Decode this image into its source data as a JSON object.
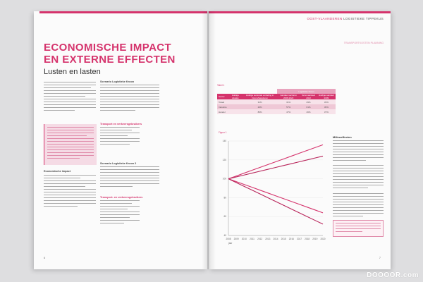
{
  "left_page": {
    "title_line1": "ECONOMISCHE IMPACT",
    "title_line2": "EN EXTERNE EFFECTEN",
    "subtitle": "Lusten en lasten",
    "col2_head1": "Scenario Logistieke Kroon",
    "col2_head2": "Transport en verkeersgebruikers",
    "col2_head3": "Scenario Logistieke Kroon 2",
    "col2_head4": "Transport- en verkeersgebruikers",
    "col1_head": "Economische impact",
    "page_number": "6"
  },
  "right_page": {
    "running_head_1": "OOST-VLAANDEREN",
    "running_head_2": "LOGISTIEKE TIPPEKUS",
    "running_sub": "TRANSPORTKOSTEN PLANNING",
    "table_caption": "Tabel 1",
    "table": {
      "group_header": "Logistieke Kroon",
      "headers": [
        "Sector",
        "Huidige situatie",
        "Huidige sectorale verdeling in Oost-Vlaanderen",
        "Aandeel sectoren 2008-2022",
        "Groei aandeel 2022",
        "Huidige aandeel 2009"
      ],
      "rows": [
        [
          "Totaal",
          "",
          "31%",
          "31%",
          "29%",
          "33%"
        ],
        [
          "Industrie",
          "",
          "29%",
          "57%",
          "61%",
          "45%"
        ],
        [
          "Handel",
          "",
          "80%",
          "47%",
          "46%",
          "37%"
        ]
      ]
    },
    "chart_caption": "Figuur 1",
    "right_col_head": "Milieueffecten",
    "page_number": "7"
  },
  "chart_data": {
    "type": "line",
    "x": [
      2008,
      2009,
      2010,
      2011,
      2012,
      2013,
      2014,
      2015,
      2016,
      2017,
      2018,
      2019,
      2020
    ],
    "ylim": [
      40,
      140
    ],
    "y_ticks": [
      40,
      60,
      80,
      100,
      120,
      140
    ],
    "xlabel": "jaar",
    "series": [
      {
        "values": [
          100,
          103,
          106,
          109,
          112,
          115,
          118,
          121,
          124,
          127,
          130,
          133,
          136
        ]
      },
      {
        "values": [
          100,
          102,
          104,
          106,
          108,
          110,
          112,
          114,
          116,
          118,
          120,
          122,
          124
        ]
      },
      {
        "values": [
          100,
          97,
          94,
          91,
          88,
          85,
          82,
          79,
          76,
          73,
          70,
          67,
          64
        ]
      },
      {
        "values": [
          100,
          96,
          92,
          88,
          84,
          80,
          76,
          72,
          68,
          64,
          60,
          56,
          52
        ]
      }
    ]
  },
  "colors": {
    "accent": "#d5336c",
    "accent_light": "#f5dbe5"
  },
  "watermark": "DOOOOR.com"
}
